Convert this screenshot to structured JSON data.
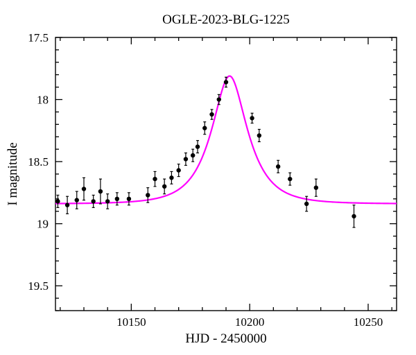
{
  "chart": {
    "type": "scatter+line",
    "title": "OGLE-2023-BLG-1225",
    "title_fontsize": 19,
    "xlabel": "HJD - 2450000",
    "ylabel": "I magnitude",
    "label_fontsize": 19,
    "tick_fontsize": 17,
    "background_color": "#ffffff",
    "axis_color": "#000000",
    "frame_linewidth": 1.4,
    "xlim": [
      10118,
      10262
    ],
    "ylim": [
      19.7,
      17.5
    ],
    "y_reversed": true,
    "xticks_major": [
      10150,
      10200,
      10250
    ],
    "xticks_minor_step": 10,
    "yticks_major": [
      17.5,
      18.0,
      18.5,
      19.0,
      19.5
    ],
    "yticks_minor_step": 0.1,
    "major_tick_len": 10,
    "minor_tick_len": 5,
    "tick_direction": "in",
    "curve": {
      "color": "#ff00ff",
      "linewidth": 2.2,
      "xmin": 10118,
      "xmax": 10262,
      "baseline": 18.84,
      "amplitude": 1.03,
      "t0": 10191.5,
      "tE": 13.0
    },
    "points": {
      "marker_color": "#000000",
      "marker_size": 3.2,
      "errorbar_color": "#000000",
      "errorbar_width": 1.2,
      "cap_width": 4.0,
      "data": [
        {
          "x": 10119,
          "y": 18.82,
          "ey": 0.05
        },
        {
          "x": 10123,
          "y": 18.85,
          "ey": 0.07
        },
        {
          "x": 10127,
          "y": 18.81,
          "ey": 0.07
        },
        {
          "x": 10130,
          "y": 18.72,
          "ey": 0.09
        },
        {
          "x": 10134,
          "y": 18.82,
          "ey": 0.05
        },
        {
          "x": 10137,
          "y": 18.74,
          "ey": 0.1
        },
        {
          "x": 10140,
          "y": 18.82,
          "ey": 0.06
        },
        {
          "x": 10144,
          "y": 18.8,
          "ey": 0.05
        },
        {
          "x": 10149,
          "y": 18.8,
          "ey": 0.05
        },
        {
          "x": 10157,
          "y": 18.77,
          "ey": 0.06
        },
        {
          "x": 10160,
          "y": 18.64,
          "ey": 0.06
        },
        {
          "x": 10164,
          "y": 18.7,
          "ey": 0.06
        },
        {
          "x": 10167,
          "y": 18.63,
          "ey": 0.05
        },
        {
          "x": 10170,
          "y": 18.57,
          "ey": 0.05
        },
        {
          "x": 10173,
          "y": 18.48,
          "ey": 0.05
        },
        {
          "x": 10176,
          "y": 18.45,
          "ey": 0.05
        },
        {
          "x": 10178,
          "y": 18.38,
          "ey": 0.05
        },
        {
          "x": 10181,
          "y": 18.23,
          "ey": 0.05
        },
        {
          "x": 10184,
          "y": 18.12,
          "ey": 0.04
        },
        {
          "x": 10187,
          "y": 18.0,
          "ey": 0.04
        },
        {
          "x": 10190,
          "y": 17.86,
          "ey": 0.04
        },
        {
          "x": 10201,
          "y": 18.15,
          "ey": 0.04
        },
        {
          "x": 10204,
          "y": 18.29,
          "ey": 0.05
        },
        {
          "x": 10212,
          "y": 18.54,
          "ey": 0.05
        },
        {
          "x": 10217,
          "y": 18.64,
          "ey": 0.05
        },
        {
          "x": 10224,
          "y": 18.84,
          "ey": 0.06
        },
        {
          "x": 10228,
          "y": 18.71,
          "ey": 0.07
        },
        {
          "x": 10244,
          "y": 18.94,
          "ey": 0.09
        }
      ]
    }
  }
}
